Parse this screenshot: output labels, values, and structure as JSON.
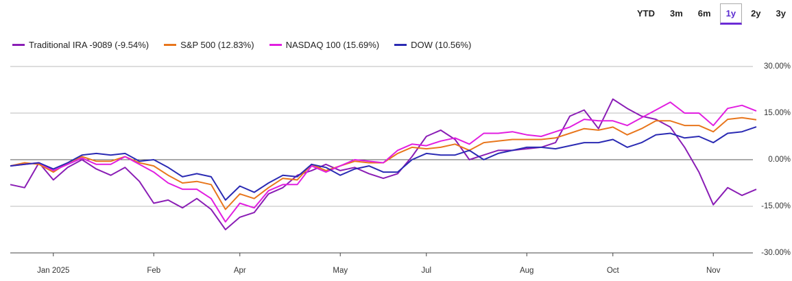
{
  "range_buttons": [
    "YTD",
    "3m",
    "6m",
    "1y",
    "2y",
    "3y"
  ],
  "selected_range": "1y",
  "chart_data": {
    "type": "line",
    "categories": [
      null,
      null,
      null,
      "Jan 2025",
      null,
      null,
      null,
      null,
      null,
      null,
      "Feb",
      null,
      null,
      null,
      null,
      null,
      "Apr",
      null,
      null,
      null,
      null,
      null,
      null,
      "May",
      null,
      null,
      null,
      null,
      null,
      "Jul",
      null,
      null,
      null,
      null,
      null,
      null,
      "Aug",
      null,
      null,
      null,
      null,
      null,
      "Oct",
      null,
      null,
      null,
      null,
      null,
      null,
      "Nov",
      null,
      null,
      null
    ],
    "series": [
      {
        "name": "Traditional IRA -9089 (-9.54%)",
        "color": "#8a1db5",
        "values": [
          -8,
          -9,
          -1,
          -6.5,
          -2.5,
          0,
          -3,
          -5,
          -2.5,
          -7,
          -14,
          -13,
          -15.5,
          -12.5,
          -16,
          -22.5,
          -18.5,
          -17,
          -11,
          -9,
          -5,
          -3.5,
          -1.5,
          -3.5,
          -2.5,
          -4.5,
          -6,
          -4.5,
          1,
          7.5,
          9.5,
          6.5,
          0,
          1.5,
          3,
          3,
          3.5,
          4,
          5.5,
          14,
          16,
          10,
          19.5,
          16.5,
          14,
          13,
          10.5,
          4,
          -4,
          -14.5,
          -9,
          -11.5,
          -9.54
        ]
      },
      {
        "name": "S&P 500 (12.83%)",
        "color": "#e8761c",
        "values": [
          -2,
          -1,
          -1.5,
          -4,
          -1,
          1,
          -0.5,
          -0.5,
          1,
          -1,
          -2,
          -5,
          -7.5,
          -7,
          -8,
          -16,
          -11,
          -12.5,
          -9,
          -6,
          -6.5,
          -1.5,
          -3.5,
          -2,
          -0.5,
          -1,
          -1,
          2,
          4,
          3.5,
          4,
          5,
          3,
          5.5,
          6,
          6.5,
          6.5,
          6.5,
          7,
          8.5,
          10,
          9.5,
          10.5,
          8,
          10,
          12.5,
          12.5,
          11,
          11,
          9,
          13,
          13.5,
          12.83
        ]
      },
      {
        "name": "NASDAQ 100 (15.69%)",
        "color": "#e11ee0",
        "values": [
          -2,
          -1.5,
          -1,
          -3.5,
          -1.5,
          0.5,
          -1.5,
          -1.5,
          1,
          -1.5,
          -4,
          -7.5,
          -9.5,
          -9.5,
          -12.5,
          -20,
          -14,
          -15.5,
          -10,
          -8,
          -8,
          -2,
          -4,
          -2,
          0,
          -0.5,
          -1,
          3,
          5,
          4.5,
          6,
          7,
          5,
          8.5,
          8.5,
          9,
          8,
          7.5,
          9,
          10.5,
          13,
          12.5,
          12.5,
          11,
          13.5,
          16,
          18.5,
          15,
          15,
          11,
          16.5,
          17.5,
          15.69
        ]
      },
      {
        "name": "DOW (10.56%)",
        "color": "#2a2ab3",
        "values": [
          -2,
          -1.5,
          -1,
          -3,
          -1,
          1.5,
          2,
          1.5,
          2,
          -0.5,
          0,
          -2.5,
          -5.5,
          -4.5,
          -5.5,
          -13,
          -8.5,
          -10.5,
          -7.5,
          -5,
          -5.5,
          -1.5,
          -2.5,
          -5,
          -3,
          -2,
          -4,
          -4,
          0,
          2,
          1.5,
          1.5,
          3,
          0,
          2,
          3,
          4,
          4,
          3.5,
          4.5,
          5.5,
          5.5,
          6.5,
          4,
          5.5,
          8,
          8.5,
          7,
          7.5,
          5.5,
          8.5,
          9,
          10.56
        ]
      }
    ],
    "ylim": [
      -30,
      30
    ],
    "yticks": [
      {
        "value": -30,
        "label": "-30.00%"
      },
      {
        "value": -15,
        "label": "-15.00%"
      },
      {
        "value": 0,
        "label": "0.00%"
      },
      {
        "value": 15,
        "label": "15.00%"
      },
      {
        "value": 30,
        "label": "30.00%"
      }
    ],
    "grid": true
  }
}
